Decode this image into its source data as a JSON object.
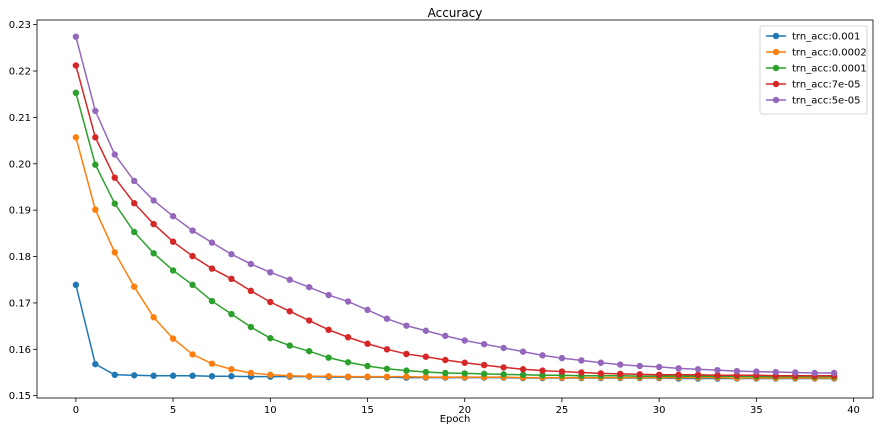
{
  "chart_data": {
    "type": "line",
    "title": "Accuracy",
    "xlabel": "Epoch",
    "ylabel": "",
    "xlim": [
      -2,
      41
    ],
    "ylim": [
      0.1495,
      0.231
    ],
    "xticks": [
      0,
      5,
      10,
      15,
      20,
      25,
      30,
      35,
      40
    ],
    "yticks": [
      0.15,
      0.16,
      0.17,
      0.18,
      0.19,
      0.2,
      0.21,
      0.22,
      0.23
    ],
    "ytick_labels": [
      "0.15",
      "0.16",
      "0.17",
      "0.18",
      "0.19",
      "0.20",
      "0.21",
      "0.22",
      "0.23"
    ],
    "grid": false,
    "legend_position": "top-right",
    "x": [
      0,
      1,
      2,
      3,
      4,
      5,
      6,
      7,
      8,
      9,
      10,
      11,
      12,
      13,
      14,
      15,
      16,
      17,
      18,
      19,
      20,
      21,
      22,
      23,
      24,
      25,
      26,
      27,
      28,
      29,
      30,
      31,
      32,
      33,
      34,
      35,
      36,
      37,
      38,
      39
    ],
    "series": [
      {
        "name": "trn_acc:0.001",
        "color": "#1f77b4",
        "values": [
          0.1739,
          0.1568,
          0.1545,
          0.1544,
          0.1543,
          0.1543,
          0.1543,
          0.1542,
          0.1542,
          0.1541,
          0.1541,
          0.1541,
          0.1541,
          0.154,
          0.154,
          0.154,
          0.154,
          0.1539,
          0.1539,
          0.1539,
          0.1539,
          0.1539,
          0.1539,
          0.1538,
          0.1538,
          0.1538,
          0.1538,
          0.1538,
          0.1538,
          0.1538,
          0.1538,
          0.1537,
          0.1537,
          0.1537,
          0.1537,
          0.1537,
          0.1537,
          0.1537,
          0.1537,
          0.1537
        ]
      },
      {
        "name": "trn_acc:0.0002",
        "color": "#ff7f0e",
        "values": [
          0.2057,
          0.1901,
          0.1809,
          0.1735,
          0.1669,
          0.1623,
          0.1589,
          0.1569,
          0.1557,
          0.1549,
          0.1545,
          0.1543,
          0.1542,
          0.1542,
          0.1541,
          0.1541,
          0.1541,
          0.1541,
          0.154,
          0.154,
          0.154,
          0.154,
          0.154,
          0.1539,
          0.1539,
          0.1539,
          0.1539,
          0.1539,
          0.1539,
          0.1539,
          0.1539,
          0.1539,
          0.1539,
          0.1539,
          0.1538,
          0.1538,
          0.1538,
          0.1538,
          0.1538,
          0.1538
        ]
      },
      {
        "name": "trn_acc:0.0001",
        "color": "#2ca02c",
        "values": [
          0.2153,
          0.1998,
          0.1914,
          0.1853,
          0.1807,
          0.177,
          0.1739,
          0.1704,
          0.1676,
          0.1648,
          0.1624,
          0.1608,
          0.1596,
          0.1582,
          0.1572,
          0.1564,
          0.1558,
          0.1554,
          0.1551,
          0.1549,
          0.1548,
          0.1547,
          0.1546,
          0.1545,
          0.1544,
          0.1544,
          0.1543,
          0.1543,
          0.1543,
          0.1542,
          0.1542,
          0.1542,
          0.1542,
          0.1542,
          0.1542,
          0.1541,
          0.1541,
          0.1541,
          0.1541,
          0.1541
        ]
      },
      {
        "name": "trn_acc:7e-05",
        "color": "#d62728",
        "values": [
          0.2212,
          0.2057,
          0.197,
          0.1915,
          0.187,
          0.1832,
          0.1801,
          0.1774,
          0.1752,
          0.1726,
          0.1702,
          0.1682,
          0.1662,
          0.1642,
          0.1626,
          0.1612,
          0.16,
          0.159,
          0.1584,
          0.1577,
          0.1571,
          0.1566,
          0.1561,
          0.1557,
          0.1554,
          0.1552,
          0.155,
          0.1548,
          0.1547,
          0.1546,
          0.1545,
          0.1545,
          0.1545,
          0.1544,
          0.1544,
          0.1544,
          0.1543,
          0.1543,
          0.1543,
          0.1543
        ]
      },
      {
        "name": "trn_acc:5e-05",
        "color": "#9467bd",
        "values": [
          0.2274,
          0.2114,
          0.202,
          0.1963,
          0.1921,
          0.1887,
          0.1856,
          0.183,
          0.1805,
          0.1784,
          0.1766,
          0.175,
          0.1734,
          0.1717,
          0.1703,
          0.1685,
          0.1666,
          0.1651,
          0.164,
          0.1629,
          0.1619,
          0.1611,
          0.1603,
          0.1595,
          0.1587,
          0.1581,
          0.1576,
          0.1571,
          0.1567,
          0.1564,
          0.1562,
          0.1559,
          0.1557,
          0.1555,
          0.1553,
          0.1552,
          0.1551,
          0.155,
          0.1549,
          0.1549
        ]
      }
    ]
  }
}
